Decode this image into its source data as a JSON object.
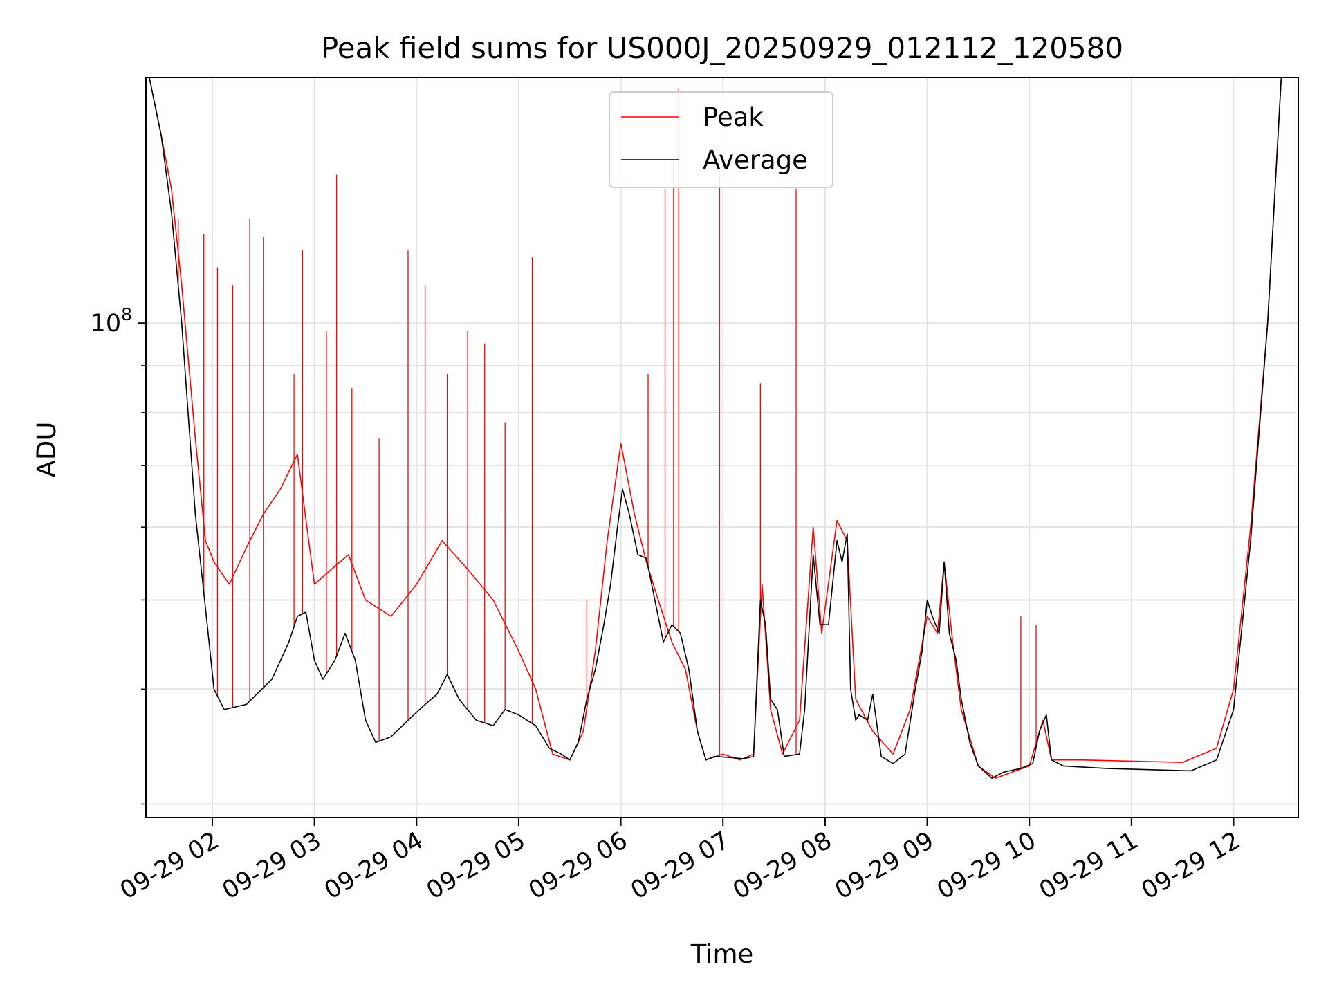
{
  "chart_data": {
    "type": "line",
    "title": "Peak field sums for US000J_20250929_012112_120580",
    "xlabel": "Time",
    "ylabel": "ADU",
    "y_scale": "log",
    "xlim": [
      "2025-09-29T01:21",
      "2025-09-29T12:38"
    ],
    "ylim": [
      29000000,
      185000000
    ],
    "x_ticks": [
      {
        "value": "2025-09-29T02:00",
        "label": "09-29 02"
      },
      {
        "value": "2025-09-29T03:00",
        "label": "09-29 03"
      },
      {
        "value": "2025-09-29T04:00",
        "label": "09-29 04"
      },
      {
        "value": "2025-09-29T05:00",
        "label": "09-29 05"
      },
      {
        "value": "2025-09-29T06:00",
        "label": "09-29 06"
      },
      {
        "value": "2025-09-29T07:00",
        "label": "09-29 07"
      },
      {
        "value": "2025-09-29T08:00",
        "label": "09-29 08"
      },
      {
        "value": "2025-09-29T09:00",
        "label": "09-29 09"
      },
      {
        "value": "2025-09-29T10:00",
        "label": "09-29 10"
      },
      {
        "value": "2025-09-29T11:00",
        "label": "09-29 11"
      },
      {
        "value": "2025-09-29T12:00",
        "label": "09-29 12"
      }
    ],
    "y_major_ticks": [
      {
        "value": 100000000,
        "base": "10",
        "exp": "8"
      }
    ],
    "y_minor_ticks": [
      30000000,
      40000000,
      50000000,
      60000000,
      70000000,
      80000000,
      90000000,
      200000000
    ],
    "grid": true,
    "legend": {
      "position": "upper center"
    },
    "series": [
      {
        "name": "Peak",
        "color": "#ff0000",
        "points": [
          [
            "2025-09-29T01:23",
            185000000
          ],
          [
            "2025-09-29T01:30",
            160000000
          ],
          [
            "2025-09-29T01:36",
            140000000
          ],
          [
            "2025-09-29T01:42",
            110000000
          ],
          [
            "2025-09-29T01:50",
            75000000
          ],
          [
            "2025-09-29T01:56",
            58000000
          ],
          [
            "2025-09-29T02:01",
            55000000
          ],
          [
            "2025-09-29T02:10",
            52000000
          ],
          [
            "2025-09-29T02:20",
            57000000
          ],
          [
            "2025-09-29T02:30",
            62000000
          ],
          [
            "2025-09-29T02:40",
            66000000
          ],
          [
            "2025-09-29T02:50",
            72000000
          ],
          [
            "2025-09-29T03:00",
            52000000
          ],
          [
            "2025-09-29T03:10",
            54000000
          ],
          [
            "2025-09-29T03:20",
            56000000
          ],
          [
            "2025-09-29T03:30",
            50000000
          ],
          [
            "2025-09-29T03:45",
            48000000
          ],
          [
            "2025-09-29T04:00",
            52000000
          ],
          [
            "2025-09-29T04:15",
            58000000
          ],
          [
            "2025-09-29T04:30",
            54000000
          ],
          [
            "2025-09-29T04:45",
            50000000
          ],
          [
            "2025-09-29T05:00",
            44000000
          ],
          [
            "2025-09-29T05:10",
            40000000
          ],
          [
            "2025-09-29T05:20",
            34000000
          ],
          [
            "2025-09-29T05:30",
            33500000
          ],
          [
            "2025-09-29T05:38",
            36000000
          ],
          [
            "2025-09-29T05:45",
            44000000
          ],
          [
            "2025-09-29T05:52",
            58000000
          ],
          [
            "2025-09-29T06:00",
            74000000
          ],
          [
            "2025-09-29T06:08",
            62000000
          ],
          [
            "2025-09-29T06:15",
            55000000
          ],
          [
            "2025-09-29T06:22",
            50000000
          ],
          [
            "2025-09-29T06:30",
            45000000
          ],
          [
            "2025-09-29T06:38",
            42000000
          ],
          [
            "2025-09-29T06:45",
            36000000
          ],
          [
            "2025-09-29T06:50",
            33500000
          ],
          [
            "2025-09-29T07:00",
            34000000
          ],
          [
            "2025-09-29T07:10",
            33500000
          ],
          [
            "2025-09-29T07:18",
            34000000
          ],
          [
            "2025-09-29T07:23",
            52000000
          ],
          [
            "2025-09-29T07:28",
            38000000
          ],
          [
            "2025-09-29T07:35",
            34000000
          ],
          [
            "2025-09-29T07:45",
            37000000
          ],
          [
            "2025-09-29T07:53",
            60000000
          ],
          [
            "2025-09-29T07:58",
            46000000
          ],
          [
            "2025-09-29T08:07",
            61000000
          ],
          [
            "2025-09-29T08:13",
            58000000
          ],
          [
            "2025-09-29T08:18",
            39000000
          ],
          [
            "2025-09-29T08:28",
            36000000
          ],
          [
            "2025-09-29T08:40",
            34000000
          ],
          [
            "2025-09-29T08:50",
            38000000
          ],
          [
            "2025-09-29T09:00",
            48000000
          ],
          [
            "2025-09-29T09:06",
            46000000
          ],
          [
            "2025-09-29T09:10",
            55000000
          ],
          [
            "2025-09-29T09:15",
            45000000
          ],
          [
            "2025-09-29T09:20",
            38000000
          ],
          [
            "2025-09-29T09:30",
            33000000
          ],
          [
            "2025-09-29T09:40",
            32000000
          ],
          [
            "2025-09-29T09:50",
            32500000
          ],
          [
            "2025-09-29T10:00",
            33000000
          ],
          [
            "2025-09-29T10:08",
            37000000
          ],
          [
            "2025-09-29T10:13",
            33500000
          ],
          [
            "2025-09-29T10:30",
            33500000
          ],
          [
            "2025-09-29T11:00",
            33400000
          ],
          [
            "2025-09-29T11:30",
            33300000
          ],
          [
            "2025-09-29T11:50",
            34500000
          ],
          [
            "2025-09-29T12:00",
            40000000
          ],
          [
            "2025-09-29T12:10",
            60000000
          ],
          [
            "2025-09-29T12:20",
            100000000
          ],
          [
            "2025-09-29T12:28",
            185000000
          ]
        ],
        "spikes": [
          [
            "2025-09-29T01:40",
            130000000
          ],
          [
            "2025-09-29T01:55",
            125000000
          ],
          [
            "2025-09-29T02:03",
            115000000
          ],
          [
            "2025-09-29T02:12",
            110000000
          ],
          [
            "2025-09-29T02:22",
            130000000
          ],
          [
            "2025-09-29T02:30",
            124000000
          ],
          [
            "2025-09-29T02:48",
            88000000
          ],
          [
            "2025-09-29T02:53",
            120000000
          ],
          [
            "2025-09-29T03:07",
            98000000
          ],
          [
            "2025-09-29T03:13",
            145000000
          ],
          [
            "2025-09-29T03:22",
            85000000
          ],
          [
            "2025-09-29T03:38",
            75000000
          ],
          [
            "2025-09-29T03:55",
            120000000
          ],
          [
            "2025-09-29T04:05",
            110000000
          ],
          [
            "2025-09-29T04:18",
            88000000
          ],
          [
            "2025-09-29T04:30",
            98000000
          ],
          [
            "2025-09-29T04:40",
            95000000
          ],
          [
            "2025-09-29T04:52",
            78000000
          ],
          [
            "2025-09-29T05:08",
            118000000
          ],
          [
            "2025-09-29T05:40",
            50000000
          ],
          [
            "2025-09-29T06:16",
            88000000
          ],
          [
            "2025-09-29T06:26",
            140000000
          ],
          [
            "2025-09-29T06:31",
            150000000
          ],
          [
            "2025-09-29T06:34",
            180000000
          ],
          [
            "2025-09-29T06:58",
            145000000
          ],
          [
            "2025-09-29T07:22",
            86000000
          ],
          [
            "2025-09-29T07:43",
            140000000
          ],
          [
            "2025-09-29T09:55",
            48000000
          ],
          [
            "2025-09-29T10:04",
            47000000
          ]
        ]
      },
      {
        "name": "Average",
        "color": "#000000",
        "points": [
          [
            "2025-09-29T01:23",
            185000000
          ],
          [
            "2025-09-29T01:30",
            160000000
          ],
          [
            "2025-09-29T01:36",
            132000000
          ],
          [
            "2025-09-29T01:42",
            100000000
          ],
          [
            "2025-09-29T01:50",
            62000000
          ],
          [
            "2025-09-29T01:56",
            49000000
          ],
          [
            "2025-09-29T02:01",
            40000000
          ],
          [
            "2025-09-29T02:07",
            38000000
          ],
          [
            "2025-09-29T02:20",
            38500000
          ],
          [
            "2025-09-29T02:35",
            41000000
          ],
          [
            "2025-09-29T02:45",
            45000000
          ],
          [
            "2025-09-29T02:50",
            48000000
          ],
          [
            "2025-09-29T02:55",
            48500000
          ],
          [
            "2025-09-29T03:00",
            43000000
          ],
          [
            "2025-09-29T03:05",
            41000000
          ],
          [
            "2025-09-29T03:12",
            43000000
          ],
          [
            "2025-09-29T03:18",
            46000000
          ],
          [
            "2025-09-29T03:24",
            43000000
          ],
          [
            "2025-09-29T03:30",
            37000000
          ],
          [
            "2025-09-29T03:36",
            35000000
          ],
          [
            "2025-09-29T03:45",
            35500000
          ],
          [
            "2025-09-29T03:55",
            37000000
          ],
          [
            "2025-09-29T04:05",
            38500000
          ],
          [
            "2025-09-29T04:12",
            39500000
          ],
          [
            "2025-09-29T04:18",
            41500000
          ],
          [
            "2025-09-29T04:25",
            39000000
          ],
          [
            "2025-09-29T04:35",
            37000000
          ],
          [
            "2025-09-29T04:45",
            36500000
          ],
          [
            "2025-09-29T04:52",
            38000000
          ],
          [
            "2025-09-29T05:00",
            37500000
          ],
          [
            "2025-09-29T05:10",
            36500000
          ],
          [
            "2025-09-29T05:18",
            34500000
          ],
          [
            "2025-09-29T05:25",
            34000000
          ],
          [
            "2025-09-29T05:30",
            33500000
          ],
          [
            "2025-09-29T05:35",
            35000000
          ],
          [
            "2025-09-29T05:40",
            39000000
          ],
          [
            "2025-09-29T05:45",
            42000000
          ],
          [
            "2025-09-29T05:50",
            47000000
          ],
          [
            "2025-09-29T05:54",
            52000000
          ],
          [
            "2025-09-29T05:58",
            60000000
          ],
          [
            "2025-09-29T06:01",
            66000000
          ],
          [
            "2025-09-29T06:05",
            62000000
          ],
          [
            "2025-09-29T06:10",
            56000000
          ],
          [
            "2025-09-29T06:15",
            55500000
          ],
          [
            "2025-09-29T06:20",
            50000000
          ],
          [
            "2025-09-29T06:25",
            45000000
          ],
          [
            "2025-09-29T06:30",
            47000000
          ],
          [
            "2025-09-29T06:35",
            46000000
          ],
          [
            "2025-09-29T06:40",
            42000000
          ],
          [
            "2025-09-29T06:45",
            36000000
          ],
          [
            "2025-09-29T06:50",
            33500000
          ],
          [
            "2025-09-29T06:55",
            33800000
          ],
          [
            "2025-09-29T07:05",
            33700000
          ],
          [
            "2025-09-29T07:12",
            33600000
          ],
          [
            "2025-09-29T07:18",
            33800000
          ],
          [
            "2025-09-29T07:22",
            50000000
          ],
          [
            "2025-09-29T07:25",
            47000000
          ],
          [
            "2025-09-29T07:28",
            39000000
          ],
          [
            "2025-09-29T07:32",
            38000000
          ],
          [
            "2025-09-29T07:36",
            33800000
          ],
          [
            "2025-09-29T07:45",
            34000000
          ],
          [
            "2025-09-29T07:48",
            38000000
          ],
          [
            "2025-09-29T07:53",
            56000000
          ],
          [
            "2025-09-29T07:57",
            47000000
          ],
          [
            "2025-09-29T08:02",
            47000000
          ],
          [
            "2025-09-29T08:07",
            58000000
          ],
          [
            "2025-09-29T08:10",
            55000000
          ],
          [
            "2025-09-29T08:13",
            59000000
          ],
          [
            "2025-09-29T08:15",
            40000000
          ],
          [
            "2025-09-29T08:18",
            37000000
          ],
          [
            "2025-09-29T08:20",
            37500000
          ],
          [
            "2025-09-29T08:25",
            37000000
          ],
          [
            "2025-09-29T08:28",
            39500000
          ],
          [
            "2025-09-29T08:33",
            33800000
          ],
          [
            "2025-09-29T08:40",
            33200000
          ],
          [
            "2025-09-29T08:47",
            34000000
          ],
          [
            "2025-09-29T08:53",
            40000000
          ],
          [
            "2025-09-29T08:57",
            44000000
          ],
          [
            "2025-09-29T09:00",
            50000000
          ],
          [
            "2025-09-29T09:03",
            48000000
          ],
          [
            "2025-09-29T09:07",
            46000000
          ],
          [
            "2025-09-29T09:10",
            55000000
          ],
          [
            "2025-09-29T09:13",
            46000000
          ],
          [
            "2025-09-29T09:17",
            43000000
          ],
          [
            "2025-09-29T09:20",
            39000000
          ],
          [
            "2025-09-29T09:25",
            35000000
          ],
          [
            "2025-09-29T09:30",
            33000000
          ],
          [
            "2025-09-29T09:38",
            32000000
          ],
          [
            "2025-09-29T09:45",
            32500000
          ],
          [
            "2025-09-29T09:55",
            32800000
          ],
          [
            "2025-09-29T10:02",
            33200000
          ],
          [
            "2025-09-29T10:06",
            36000000
          ],
          [
            "2025-09-29T10:10",
            37500000
          ],
          [
            "2025-09-29T10:13",
            33500000
          ],
          [
            "2025-09-29T10:20",
            33000000
          ],
          [
            "2025-09-29T10:45",
            32800000
          ],
          [
            "2025-09-29T11:10",
            32700000
          ],
          [
            "2025-09-29T11:35",
            32600000
          ],
          [
            "2025-09-29T11:50",
            33500000
          ],
          [
            "2025-09-29T12:00",
            38000000
          ],
          [
            "2025-09-29T12:10",
            58000000
          ],
          [
            "2025-09-29T12:20",
            100000000
          ],
          [
            "2025-09-29T12:28",
            185000000
          ]
        ]
      }
    ]
  }
}
